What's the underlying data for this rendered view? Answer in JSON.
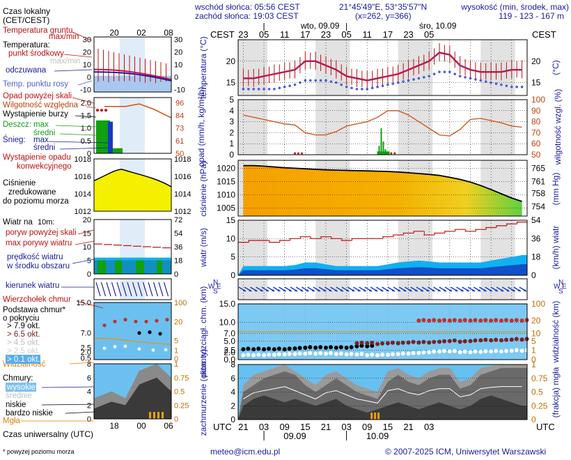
{
  "header": {
    "local_time_label": "Czas lokalny",
    "local_time_zone": "(CET/CEST)",
    "sunrise": "wschód słońca: 05:56 CEST",
    "sunset": "zachód słońca: 19:03 CEST",
    "coords": "21°45'49\"E, 53°35'57\"N",
    "grid_point": "(x=262, y=366)",
    "altitude_label": "wysokość (min, środek, max)",
    "altitude_values": "119 - 123 - 167 m",
    "date1": "wto, 09.09",
    "date2": "śro, 10.09",
    "cest_left": "CEST",
    "cest_right": "CEST",
    "top_hours": [
      "23",
      "05",
      "11",
      "17",
      "23",
      "05",
      "11",
      "17",
      "23",
      "05"
    ],
    "legend_top_hours": [
      "20",
      "02",
      "08"
    ]
  },
  "footer": {
    "utc_label": "UTC",
    "utc_right": "UTC",
    "bottom_hours": [
      "21",
      "03",
      "09",
      "15",
      "21",
      "03",
      "09",
      "15",
      "21",
      "03"
    ],
    "bottom_dates": [
      "09.09",
      "10.09"
    ],
    "legend_bottom_hours": [
      "18",
      "00",
      "06"
    ],
    "universal_time": "Czas uniwersalny (UTC)",
    "footnote": "* powyżej poziomu morza",
    "email": "meteo@icm.edu.pl",
    "copyright": "© 2007-2025 ICM, Uniwersytet Warszawski"
  },
  "legend": {
    "soil_temp": "Temperatura gruntu",
    "maxmin": "max/min",
    "temperature": "Temperatura:",
    "mid_point": "punkt środkowy",
    "maxmin2": "max/min",
    "felt": "odczuwana",
    "dew_point": "Temp. punktu rosy",
    "precip_above": "Opad powyżej skali",
    "humidity": "Wilgotność względna",
    "storm": "Wystąpienie burzy",
    "rain": "Deszcz:",
    "snow": "Śnieg:",
    "max": "max",
    "mean": "średni",
    "conv_precip_1": "Wystąpienie opadu",
    "conv_precip_2": "konwekcyjnego",
    "pressure_1": "Ciśnienie",
    "pressure_2": "zredukowane",
    "pressure_3": "do poziomu morza",
    "wind_title": "Wiatr na ",
    "wind_height": "10m:",
    "gust_above": "poryw powyżej skali",
    "max_gust": "max porywy wiatru",
    "mean_wind_1": "prędkość wiatru",
    "mean_wind_2": "w środku obszaru",
    "wind_dir": "kierunek wiatru",
    "cloud_top": "Wierzchołek chmur",
    "cloud_base_1": "Podstawa chmur*",
    "cloud_base_2": "o pokryciu",
    "okt_levels": [
      "> 7.9 okt.",
      "> 6.5 okt.",
      "> 4.5 okt.",
      "> 2.5 okt.",
      "> 0.1 okt."
    ],
    "visibility": "Widzialność",
    "clouds": "Chmury:",
    "high": "wysokie",
    "medium": "średnie",
    "low": "niskie",
    "very_low": "bardzo niskie",
    "fog": "Mgła"
  },
  "colors": {
    "temp_line": "#d0103a",
    "dew_dots": "#4c5cd8",
    "felt_line": "#1a1aa0",
    "humidity": "#d05010",
    "rain_green": "#10a010",
    "snow_blue": "#1438c8",
    "pressure_fill": "#f0a000",
    "pressure_fill_end": "#60d040",
    "wind_light": "#10b0f0",
    "wind_dark": "#1050c8",
    "wind_darkest": "#103080",
    "gust_red": "#c01010",
    "visibility": "#f09000",
    "cloud_bg": "#66c0f0",
    "night_band": "#e2e2e2"
  },
  "chart_data": [
    {
      "type": "line",
      "title": "temperatura (°C)",
      "ylabel": "temperatura (°C)",
      "ylabel_right": "(°C)",
      "ylim": [
        12,
        25
      ],
      "yticks": [
        "20",
        "15"
      ],
      "x_hours_utc": [
        21,
        24,
        27,
        30,
        33,
        36,
        39,
        42,
        45,
        48,
        51,
        54,
        57,
        60,
        63,
        66,
        69,
        72,
        75,
        78,
        81,
        84,
        87,
        90,
        93,
        96,
        99,
        102
      ],
      "series": [
        {
          "name": "punkt środkowy",
          "values": [
            16,
            16,
            16.5,
            17,
            17.5,
            18,
            20,
            20,
            19,
            18,
            16.5,
            16,
            15.5,
            16,
            16.5,
            17,
            18,
            19,
            20,
            22,
            21.5,
            19,
            18,
            17.5,
            17.5,
            17.5,
            18,
            18
          ]
        },
        {
          "name": "Temp. punktu rosy",
          "values": [
            13.5,
            13.5,
            13.5,
            13.5,
            14,
            14.5,
            15.5,
            15.5,
            15.5,
            15,
            14,
            13.5,
            13.5,
            14,
            14.5,
            15,
            15.5,
            16,
            16.5,
            17.5,
            17.5,
            16.5,
            16,
            15.5,
            15,
            14.5,
            14,
            14
          ]
        }
      ]
    },
    {
      "type": "line",
      "title": "opad (mm/h, kg/m²/h) / wilgotność wzgl. (%)",
      "ylabel": "opad (mm/h, kg/m²/h)",
      "ylabel_right": "wilgotność wzgl. (%)",
      "ylim_left": [
        0,
        5
      ],
      "ylim_right": [
        50,
        100
      ],
      "yticks_left": [
        "5",
        "4",
        "3",
        "2",
        "1",
        "0"
      ],
      "yticks_right": [
        "100",
        "90",
        "80",
        "70",
        "60",
        "50"
      ],
      "x_hours_utc": [
        21,
        24,
        27,
        30,
        33,
        36,
        39,
        42,
        45,
        48,
        51,
        54,
        57,
        60,
        63,
        66,
        69,
        72,
        75,
        78,
        81,
        84,
        87,
        90,
        93,
        96,
        99,
        102
      ],
      "series": [
        {
          "name": "wilgotność",
          "values": [
            86,
            84,
            82,
            80,
            78,
            77,
            70,
            68,
            68,
            71,
            76,
            78,
            80,
            84,
            90,
            90,
            86,
            80,
            74,
            68,
            67,
            73,
            82,
            83,
            81,
            79,
            76,
            75
          ]
        },
        {
          "name": "opad max",
          "values": [
            0,
            0,
            0,
            0,
            0,
            0,
            0,
            0,
            0,
            0,
            0,
            0,
            0,
            2.3,
            0.6,
            0,
            0,
            0,
            0,
            0,
            0,
            0,
            0,
            0,
            0,
            0,
            0,
            0
          ]
        }
      ]
    },
    {
      "type": "area",
      "title": "ciśnienie (hPa)",
      "ylabel": "ciśnienie (hPa)",
      "ylabel_right": "(mm Hg)",
      "ylim": [
        1002,
        1023
      ],
      "yticks_left": [
        "1020",
        "1015",
        "1010",
        "1005"
      ],
      "yticks_right": [
        "765",
        "761",
        "758",
        "754"
      ],
      "x_hours_utc": [
        21,
        24,
        27,
        30,
        33,
        36,
        39,
        42,
        45,
        48,
        51,
        54,
        57,
        60,
        63,
        66,
        69,
        72,
        75,
        78,
        81,
        84,
        87,
        90,
        93,
        96,
        99,
        102
      ],
      "values": [
        1021,
        1021,
        1020.8,
        1020.5,
        1020.2,
        1020,
        1019.8,
        1019.6,
        1019.4,
        1019.3,
        1019.2,
        1019.1,
        1019,
        1018.9,
        1018.8,
        1018.6,
        1018.3,
        1018,
        1017.7,
        1017.3,
        1016.6,
        1015.8,
        1014.8,
        1013.5,
        1012,
        1010.4,
        1008.8,
        1007.5
      ]
    },
    {
      "type": "area",
      "title": "wiatr (m/s)",
      "ylabel": "wiatr (m/s)",
      "ylabel_right": "(km/h) wiatr",
      "ylim": [
        0,
        15
      ],
      "yticks_left": [
        "15",
        "10",
        "5",
        "0"
      ],
      "yticks_right": [
        "54",
        "36",
        "18",
        "0"
      ],
      "x_hours_utc": [
        21,
        24,
        27,
        30,
        33,
        36,
        39,
        42,
        45,
        48,
        51,
        54,
        57,
        60,
        63,
        66,
        69,
        72,
        75,
        78,
        81,
        84,
        87,
        90,
        93,
        96,
        99,
        102
      ],
      "series": [
        {
          "name": "max porywy wiatru",
          "values": [
            9,
            9.5,
            9.5,
            9,
            9.5,
            10,
            10.5,
            10,
            10.5,
            10,
            9.5,
            10,
            10,
            10,
            10.5,
            11,
            11.5,
            12,
            11,
            11.5,
            12,
            12.5,
            12,
            12.5,
            13,
            13.5,
            14,
            14.5
          ]
        },
        {
          "name": "prędkość wiatru",
          "values": [
            2.5,
            2.5,
            2.5,
            2.5,
            2.5,
            2.8,
            3.5,
            3.5,
            3,
            2.5,
            2.5,
            2.5,
            2.5,
            2.5,
            3,
            3.5,
            3.8,
            4,
            3.8,
            3.5,
            3.5,
            3.5,
            3.5,
            3.5,
            4,
            4.5,
            5,
            5.5
          ]
        }
      ]
    },
    {
      "type": "scatter",
      "title": "pion. rozciągł. chm. (km) / widzialność (km)",
      "ylabel": "pion. rozciągł. chm. (km)",
      "ylabel_right": "widzialność (km)",
      "ylim_left": [
        0,
        15
      ],
      "yticks_left": [
        "15.0",
        "10.0",
        "7.0",
        "5.0",
        "2.5",
        "2.0",
        "0.0"
      ],
      "yticks_right": [
        "100",
        "20",
        "10",
        "5",
        "1",
        "0"
      ],
      "x_hours_utc": [
        21,
        24,
        27,
        30,
        33,
        36,
        39,
        42,
        45,
        48,
        51,
        54,
        57,
        60,
        63,
        66,
        69,
        72,
        75,
        78,
        81,
        84,
        87,
        90,
        93,
        96,
        99,
        102
      ],
      "series": [
        {
          "name": "> 7.9 okt.",
          "values": [
            2.8,
            2.8,
            2.8,
            2.8,
            2.8,
            3,
            3.2,
            3.2,
            3.2,
            3.2,
            3.2,
            3.6,
            3.6,
            null,
            null,
            null,
            null,
            null,
            null,
            null,
            null,
            null,
            null,
            null,
            null,
            null,
            null,
            null
          ]
        },
        {
          "name": "> 6.5 okt.",
          "values": [
            null,
            null,
            null,
            null,
            null,
            null,
            null,
            null,
            null,
            null,
            null,
            4.4,
            4.4,
            4.2,
            4.4,
            4.4,
            4.6,
            4.6,
            4.6,
            4.8,
            5,
            4.8,
            5,
            5.2,
            5.2,
            5.2,
            5.4,
            5.4
          ]
        },
        {
          "name": "> 0.1 okt.",
          "values": [
            1.2,
            1.2,
            1.2,
            1.3,
            1.4,
            1.5,
            1.6,
            1.6,
            1.6,
            1.5,
            1.4,
            1.4,
            1.2,
            1.2,
            1.3,
            1.5,
            1.6,
            1.8,
            2,
            2.2,
            2.2,
            2,
            2,
            2.1,
            2.2,
            2.2,
            2.4,
            2.4
          ]
        },
        {
          "name": "Wierzchołek chmur",
          "values": [
            null,
            null,
            null,
            null,
            null,
            null,
            null,
            null,
            null,
            null,
            null,
            null,
            null,
            null,
            null,
            null,
            null,
            10.5,
            10.5,
            10.5,
            10.5,
            10.5,
            10.5,
            10.5,
            10.5,
            10.5,
            10.5,
            10.5
          ]
        },
        {
          "name": "Widzialność",
          "values": [
            20,
            20,
            20,
            20,
            20,
            20,
            20,
            20,
            20,
            20,
            20,
            20,
            5,
            20,
            20,
            20,
            20,
            20,
            20,
            20,
            20,
            20,
            20,
            20,
            20,
            20,
            20,
            20
          ]
        }
      ]
    },
    {
      "type": "area",
      "title": "zachmurzenie (oktanty) / mgła (frakcja)",
      "ylabel": "zachmurzenie (oktanty)",
      "ylabel_right": "(frakcja) mgła",
      "ylim": [
        0,
        8
      ],
      "yticks_left": [
        "8",
        "6",
        "4",
        "2",
        "0"
      ],
      "yticks_right": [
        "1",
        "0.75",
        "0.5",
        "0.25",
        "0"
      ],
      "x_hours_utc": [
        21,
        24,
        27,
        30,
        33,
        36,
        39,
        42,
        45,
        48,
        51,
        54,
        57,
        60,
        63,
        66,
        69,
        72,
        75,
        78,
        81,
        84,
        87,
        90,
        93,
        96,
        99,
        102
      ],
      "series": [
        {
          "name": "wysokie",
          "values": [
            5,
            6.5,
            7,
            7.5,
            8,
            7,
            6,
            5,
            6.5,
            7,
            6,
            5,
            4.5,
            4,
            7,
            7.5,
            6.5,
            6,
            7,
            7.5,
            7.5,
            5.5,
            6,
            7.5,
            7.8,
            8,
            8,
            8
          ]
        },
        {
          "name": "średnie",
          "values": [
            4,
            5,
            6,
            6.5,
            7,
            6.5,
            5,
            4,
            5,
            6,
            5,
            4,
            3.5,
            3,
            5.5,
            6.5,
            5.5,
            5,
            6,
            6.5,
            6.5,
            4.5,
            5,
            6.5,
            7,
            7.5,
            7.5,
            7.5
          ]
        },
        {
          "name": "niskie",
          "values": [
            2,
            3,
            3.5,
            3,
            2.5,
            3,
            2.5,
            2,
            2.5,
            3,
            2,
            1.5,
            1,
            1.5,
            2,
            2.5,
            2,
            1.5,
            2,
            2.5,
            2,
            1.5,
            2,
            3,
            3.5,
            3,
            2.5,
            2
          ]
        },
        {
          "name": "Mgła",
          "values": [
            0,
            0,
            0,
            0,
            0,
            0,
            0,
            0,
            0,
            0,
            0,
            0,
            0.1,
            0.15,
            0,
            0,
            0,
            0,
            0,
            0,
            0,
            0,
            0,
            0,
            0,
            0,
            0,
            0
          ]
        }
      ]
    }
  ]
}
